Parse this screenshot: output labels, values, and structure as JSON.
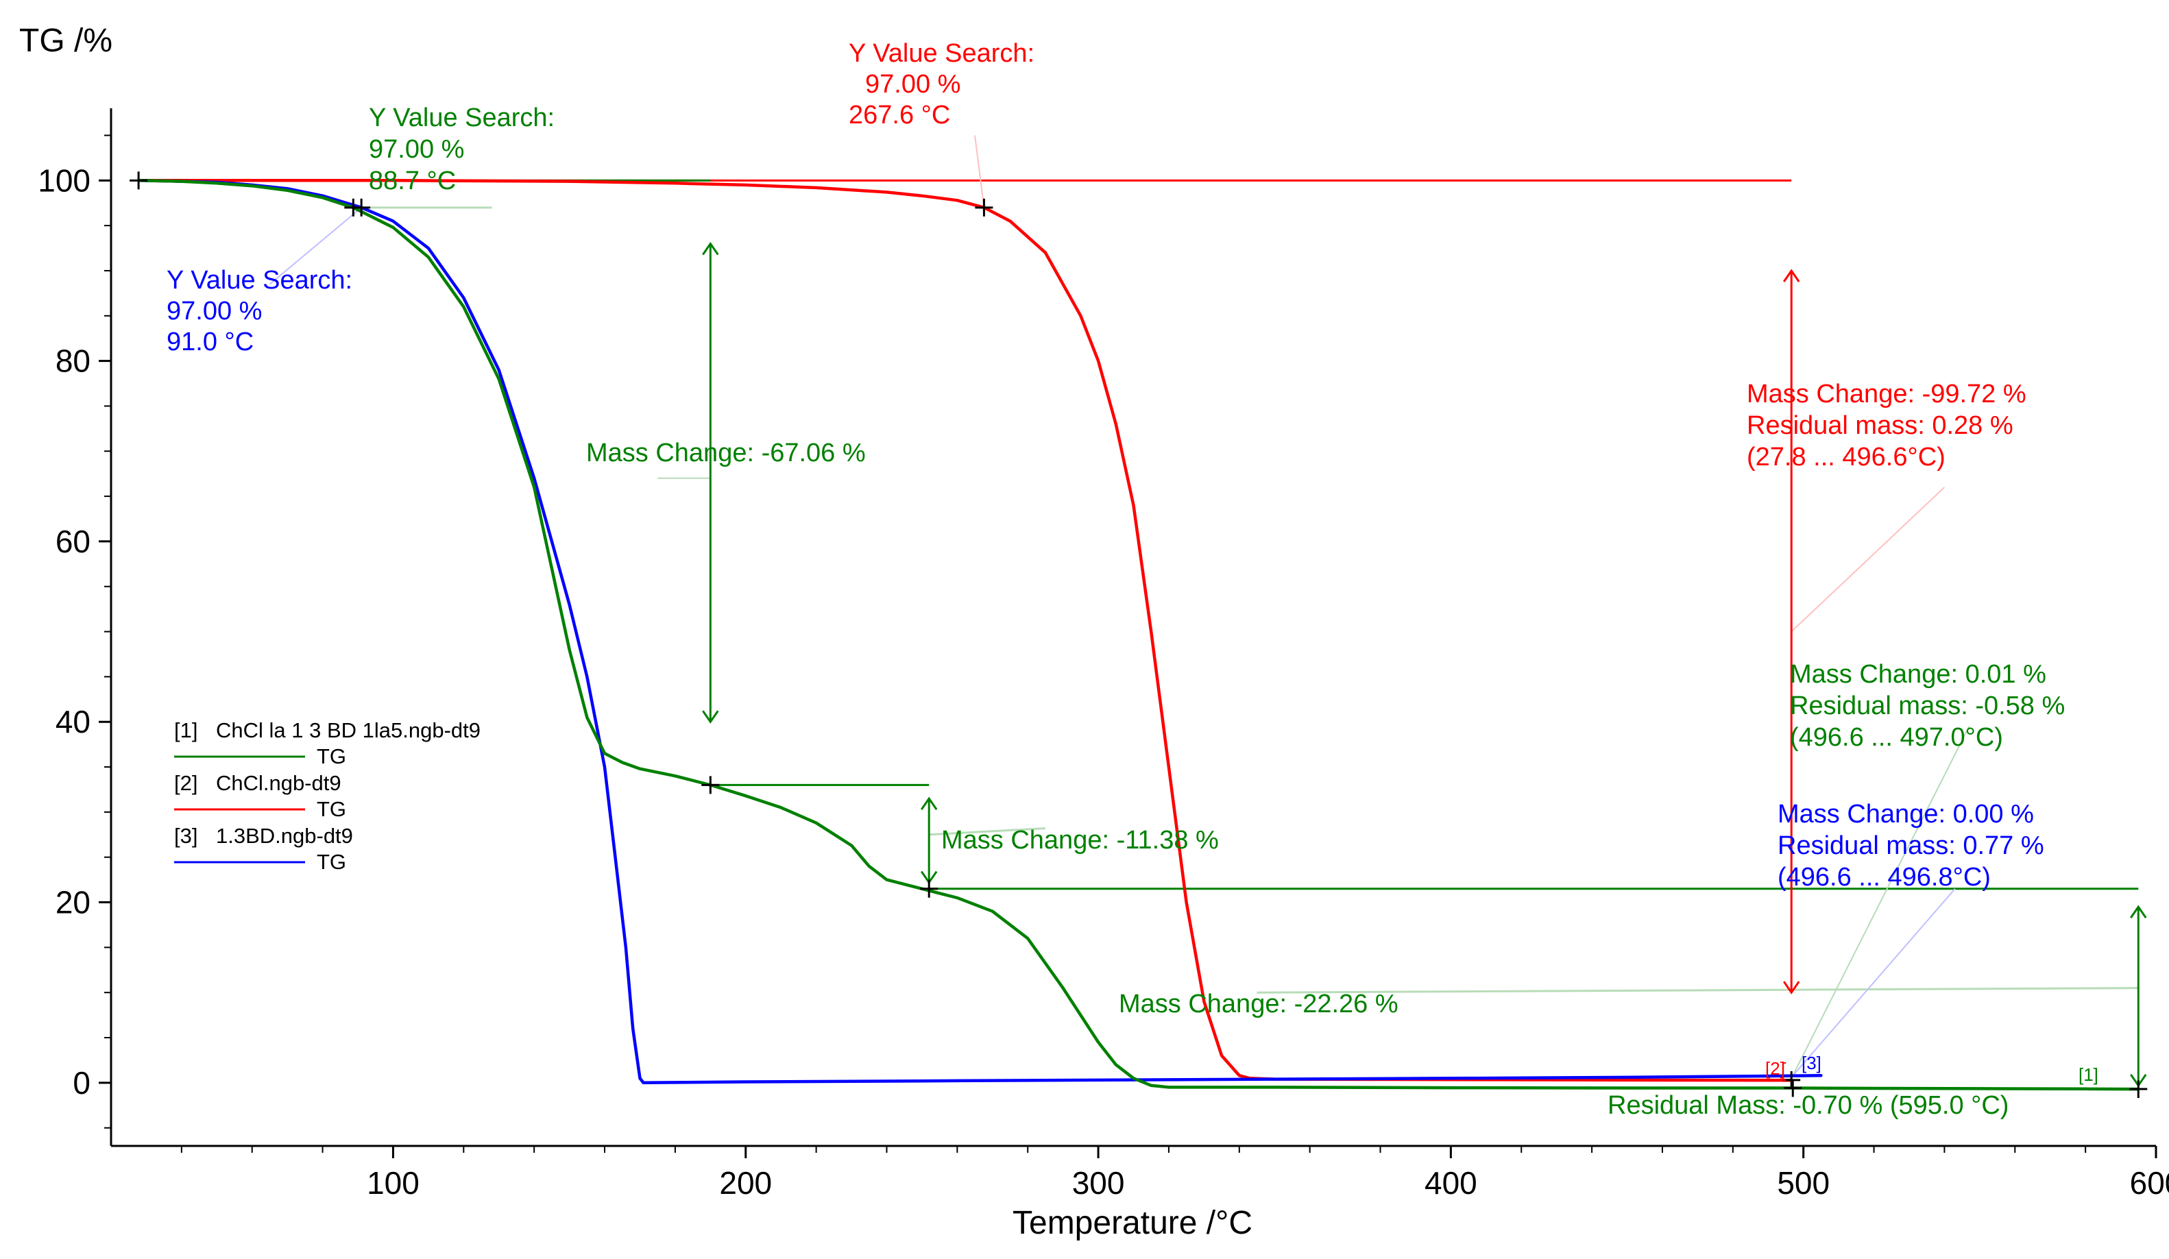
{
  "colors": {
    "sample1": "#008000",
    "sample2": "#ff0000",
    "sample3": "#0000ff",
    "axis": "#000000",
    "sample1_pale": "#b8dcb8",
    "sample2_pale": "#ffc0c0",
    "sample3_pale": "#c0c0ff"
  },
  "chart_data": {
    "type": "line",
    "ylabel": "TG /%",
    "xlabel": "Temperature /°C",
    "xlim": [
      20,
      600
    ],
    "ylim": [
      -7,
      108
    ],
    "x_ticks": [
      100,
      200,
      300,
      400,
      500,
      600
    ],
    "y_ticks": [
      0,
      20,
      40,
      60,
      80,
      100
    ],
    "grid": false,
    "legend_position": "center-left",
    "legend": [
      {
        "key": "[1]",
        "file": "ChCl la 1 3 BD 1la5.ngb-dt9",
        "signal": "TG",
        "color_key": "sample1"
      },
      {
        "key": "[2]",
        "file": "ChCl.ngb-dt9",
        "signal": "TG",
        "color_key": "sample2"
      },
      {
        "key": "[3]",
        "file": "1.3BD.ngb-dt9",
        "signal": "TG",
        "color_key": "sample3"
      }
    ],
    "series": [
      {
        "name": "[1] ChCl la 1 3 BD 1la5.ngb-dt9 TG",
        "color_key": "sample1",
        "x": [
          27.8,
          40,
          50,
          60,
          70,
          80,
          88.7,
          100,
          110,
          120,
          130,
          140,
          145,
          150,
          155,
          160,
          165,
          170,
          180,
          190,
          200,
          210,
          220,
          230,
          235,
          240,
          245,
          250,
          255,
          260,
          270,
          280,
          290,
          300,
          305,
          310,
          315,
          320,
          330,
          350,
          400,
          450,
          496.6,
          520,
          550,
          580,
          595
        ],
        "y": [
          100,
          99.9,
          99.7,
          99.4,
          98.9,
          98.1,
          97.0,
          94.8,
          91.5,
          86,
          78,
          66,
          57,
          48,
          40.5,
          36.5,
          35.5,
          34.8,
          34,
          33,
          31.8,
          30.5,
          28.8,
          26.3,
          24,
          22.5,
          22,
          21.5,
          21,
          20.5,
          19,
          16,
          10.5,
          4.5,
          2,
          0.5,
          -0.3,
          -0.5,
          -0.5,
          -0.5,
          -0.55,
          -0.58,
          -0.58,
          -0.62,
          -0.65,
          -0.68,
          -0.7
        ]
      },
      {
        "name": "[2] ChCl.ngb-dt9 TG",
        "color_key": "sample2",
        "x": [
          27.8,
          100,
          150,
          180,
          200,
          220,
          240,
          250,
          260,
          267.6,
          275,
          285,
          295,
          300,
          305,
          310,
          315,
          320,
          325,
          330,
          335,
          340,
          343,
          350,
          400,
          450,
          496.6
        ],
        "y": [
          100,
          100,
          99.9,
          99.7,
          99.5,
          99.2,
          98.7,
          98.3,
          97.8,
          97.0,
          95.5,
          92,
          85,
          80,
          73,
          64,
          50,
          35,
          20,
          9,
          3,
          0.8,
          0.5,
          0.4,
          0.35,
          0.3,
          0.28
        ]
      },
      {
        "name": "[3] 1.3BD.ngb-dt9 TG",
        "color_key": "sample3",
        "x": [
          27.8,
          40,
          50,
          60,
          70,
          80,
          91,
          100,
          110,
          120,
          130,
          140,
          145,
          150,
          155,
          160,
          163,
          166,
          168,
          170,
          171,
          200,
          250,
          300,
          350,
          400,
          450,
          496.6,
          505
        ],
        "y": [
          100,
          99.9,
          99.8,
          99.5,
          99.1,
          98.3,
          97.0,
          95.5,
          92.5,
          87,
          79,
          67,
          60,
          53,
          45,
          35,
          25,
          15,
          6,
          0.5,
          0,
          0.1,
          0.2,
          0.3,
          0.4,
          0.5,
          0.6,
          0.77,
          0.8
        ]
      }
    ],
    "annotations": {
      "y_search_1": {
        "title": "Y Value Search:",
        "value": "97.00 %",
        "temp": "88.7 °C"
      },
      "y_search_2": {
        "title": "Y Value Search:",
        "value": "97.00 %",
        "temp": "267.6 °C"
      },
      "y_search_3": {
        "title": "Y Value Search:",
        "value": "97.00 %",
        "temp": "91.0 °C"
      },
      "mass_change_1a": "Mass Change: -67.06 %",
      "mass_change_1b": "Mass Change: -11.38 %",
      "mass_change_1c": "Mass Change: -22.26 %",
      "summary_red": {
        "line1": "Mass Change:  -99.72 %",
        "line2": "Residual mass:    0.28 %",
        "line3": "(27.8 ... 496.6°C)"
      },
      "summary_green": {
        "line1": "Mass Change:    0.01 %",
        "line2": "Residual mass:  -0.58 %",
        "line3": "(496.6 ... 497.0°C)"
      },
      "summary_blue": {
        "line1": "Mass Change:   0.00 %",
        "line2": "Residual mass:  0.77 %",
        "line3": "(496.6 ... 496.8°C)"
      },
      "residual_final": "Residual Mass: -0.70 % (595.0 °C)",
      "marker_1": "[1]",
      "marker_2": "[2]",
      "marker_3": "[3]"
    }
  }
}
